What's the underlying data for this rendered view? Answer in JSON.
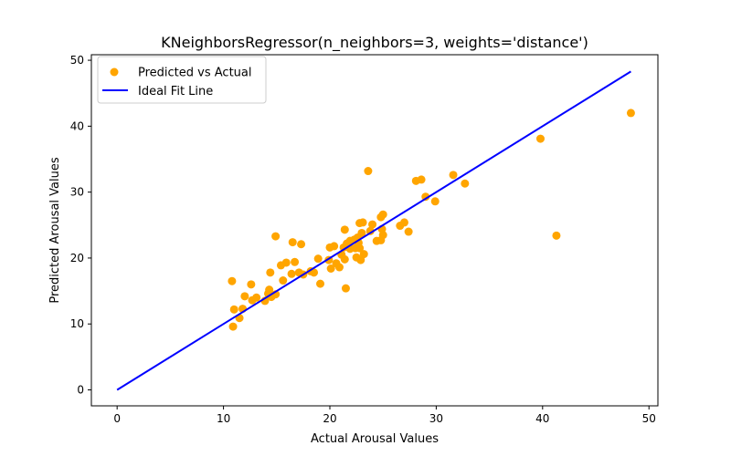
{
  "chart_data": {
    "type": "scatter",
    "title": "KNeighborsRegressor(n_neighbors=3, weights='distance')",
    "xlabel": "Actual Arousal Values",
    "ylabel": "Predicted Arousal Values",
    "xlim": [
      -2.42,
      50.84
    ],
    "ylim": [
      -2.42,
      50.84
    ],
    "xticks": [
      0,
      10,
      20,
      30,
      40,
      50
    ],
    "yticks": [
      0,
      10,
      20,
      30,
      40,
      50
    ],
    "grid": false,
    "legend_position": "top-left",
    "series": [
      {
        "name": "Predicted vs Actual",
        "kind": "scatter",
        "color": "#FFA500",
        "points": [
          [
            10.8,
            16.5
          ],
          [
            11.0,
            12.2
          ],
          [
            10.9,
            9.6
          ],
          [
            11.5,
            10.9
          ],
          [
            11.8,
            12.3
          ],
          [
            12.0,
            14.2
          ],
          [
            12.6,
            16.0
          ],
          [
            12.7,
            13.6
          ],
          [
            13.1,
            14.0
          ],
          [
            13.9,
            13.5
          ],
          [
            14.2,
            14.6
          ],
          [
            14.3,
            15.2
          ],
          [
            14.5,
            14.1
          ],
          [
            14.4,
            17.8
          ],
          [
            14.9,
            14.5
          ],
          [
            14.9,
            23.3
          ],
          [
            15.4,
            18.9
          ],
          [
            15.6,
            16.6
          ],
          [
            15.9,
            19.3
          ],
          [
            16.4,
            17.6
          ],
          [
            16.5,
            22.4
          ],
          [
            16.7,
            19.4
          ],
          [
            17.1,
            17.8
          ],
          [
            17.3,
            22.1
          ],
          [
            17.5,
            17.5
          ],
          [
            18.2,
            18.0
          ],
          [
            18.5,
            17.8
          ],
          [
            18.9,
            19.9
          ],
          [
            19.1,
            16.1
          ],
          [
            19.9,
            19.7
          ],
          [
            20.0,
            21.6
          ],
          [
            20.1,
            18.4
          ],
          [
            20.4,
            21.8
          ],
          [
            20.6,
            19.2
          ],
          [
            20.9,
            18.6
          ],
          [
            21.1,
            20.5
          ],
          [
            21.3,
            21.6
          ],
          [
            21.4,
            19.8
          ],
          [
            21.5,
            15.4
          ],
          [
            21.4,
            24.3
          ],
          [
            21.6,
            22.2
          ],
          [
            21.9,
            22.6
          ],
          [
            21.9,
            21.4
          ],
          [
            22.3,
            22.8
          ],
          [
            22.4,
            21.5
          ],
          [
            22.5,
            20.1
          ],
          [
            22.6,
            23.1
          ],
          [
            22.7,
            22.3
          ],
          [
            22.8,
            21.5
          ],
          [
            22.8,
            25.3
          ],
          [
            22.9,
            19.7
          ],
          [
            23.0,
            23.8
          ],
          [
            23.1,
            25.4
          ],
          [
            23.2,
            20.6
          ],
          [
            23.6,
            33.2
          ],
          [
            23.8,
            24.1
          ],
          [
            24.0,
            25.1
          ],
          [
            24.4,
            22.6
          ],
          [
            24.8,
            22.7
          ],
          [
            24.8,
            26.2
          ],
          [
            24.9,
            24.4
          ],
          [
            25.0,
            26.6
          ],
          [
            25.0,
            23.5
          ],
          [
            26.6,
            24.9
          ],
          [
            27.0,
            25.4
          ],
          [
            27.4,
            24.0
          ],
          [
            28.1,
            31.7
          ],
          [
            28.6,
            31.9
          ],
          [
            29.0,
            29.3
          ],
          [
            29.9,
            28.6
          ],
          [
            31.6,
            32.6
          ],
          [
            32.7,
            31.3
          ],
          [
            39.8,
            38.1
          ],
          [
            41.3,
            23.4
          ],
          [
            48.3,
            42.0
          ]
        ]
      },
      {
        "name": "Ideal Fit Line",
        "kind": "line",
        "color": "#0000FF",
        "points": [
          [
            0,
            0
          ],
          [
            48.3,
            48.3
          ]
        ]
      }
    ]
  }
}
